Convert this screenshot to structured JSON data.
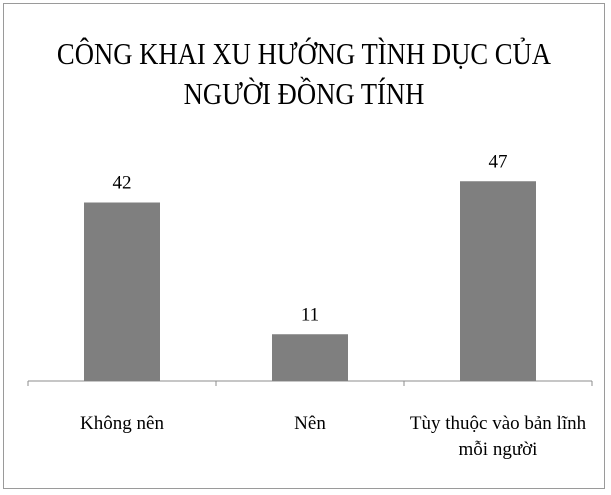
{
  "chart_data": {
    "type": "bar",
    "title_lines": [
      "CÔNG KHAI XU HƯỚNG TÌNH DỤC CỦA",
      "NGƯỜI ĐỒNG TÍNH"
    ],
    "categories": [
      [
        "Không nên"
      ],
      [
        "Nên"
      ],
      [
        "Tùy thuộc vào bản lĩnh",
        "mỗi người"
      ]
    ],
    "values": [
      42,
      11,
      47
    ],
    "value_labels": [
      "42",
      "11",
      "47"
    ],
    "ylim": [
      0,
      50
    ],
    "grid": false,
    "legend": "none",
    "bar_color": "#7f7f7f"
  }
}
